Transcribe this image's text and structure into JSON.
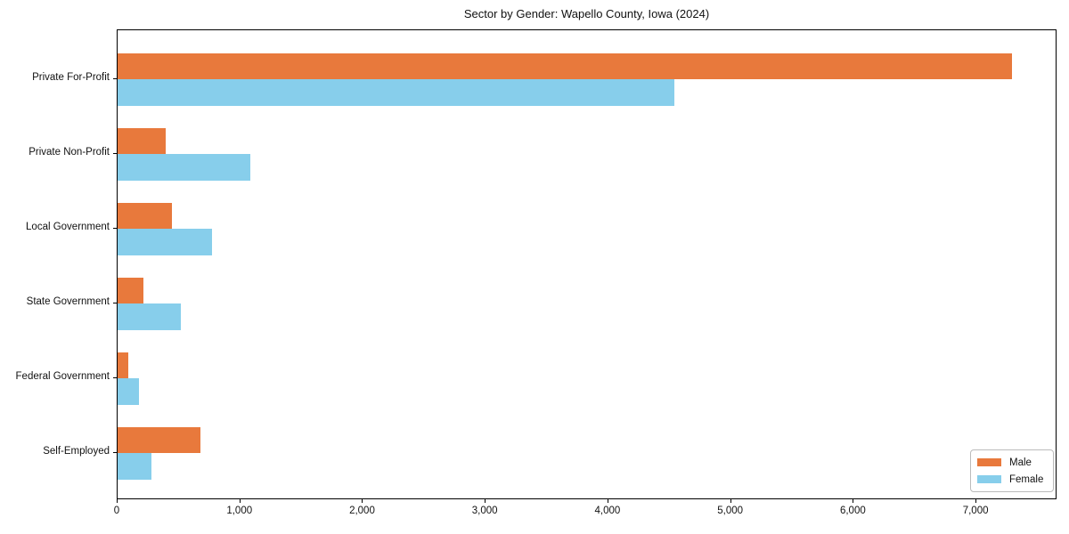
{
  "chart_data": {
    "type": "bar",
    "orientation": "horizontal",
    "title": "Sector by Gender: Wapello County, Iowa (2024)",
    "categories": [
      "Private For-Profit",
      "Private Non-Profit",
      "Local Government",
      "State Government",
      "Federal Government",
      "Self-Employed"
    ],
    "series": [
      {
        "name": "Male",
        "color": "#e8793c",
        "values": [
          7290,
          390,
          445,
          210,
          85,
          675
        ]
      },
      {
        "name": "Female",
        "color": "#87ceeb",
        "values": [
          4540,
          1080,
          770,
          515,
          175,
          275
        ]
      }
    ],
    "xlabel": "",
    "ylabel": "",
    "xlim": [
      0,
      7660
    ],
    "xticks": [
      0,
      1000,
      2000,
      3000,
      4000,
      5000,
      6000,
      7000
    ],
    "xtick_labels": [
      "0",
      "1,000",
      "2,000",
      "3,000",
      "4,000",
      "5,000",
      "6,000",
      "7,000"
    ],
    "grid": false,
    "legend": {
      "position": "lower right"
    },
    "colors": {
      "male": "#e8793c",
      "female": "#87ceeb",
      "spine": "#000000",
      "text": "#111111"
    }
  }
}
